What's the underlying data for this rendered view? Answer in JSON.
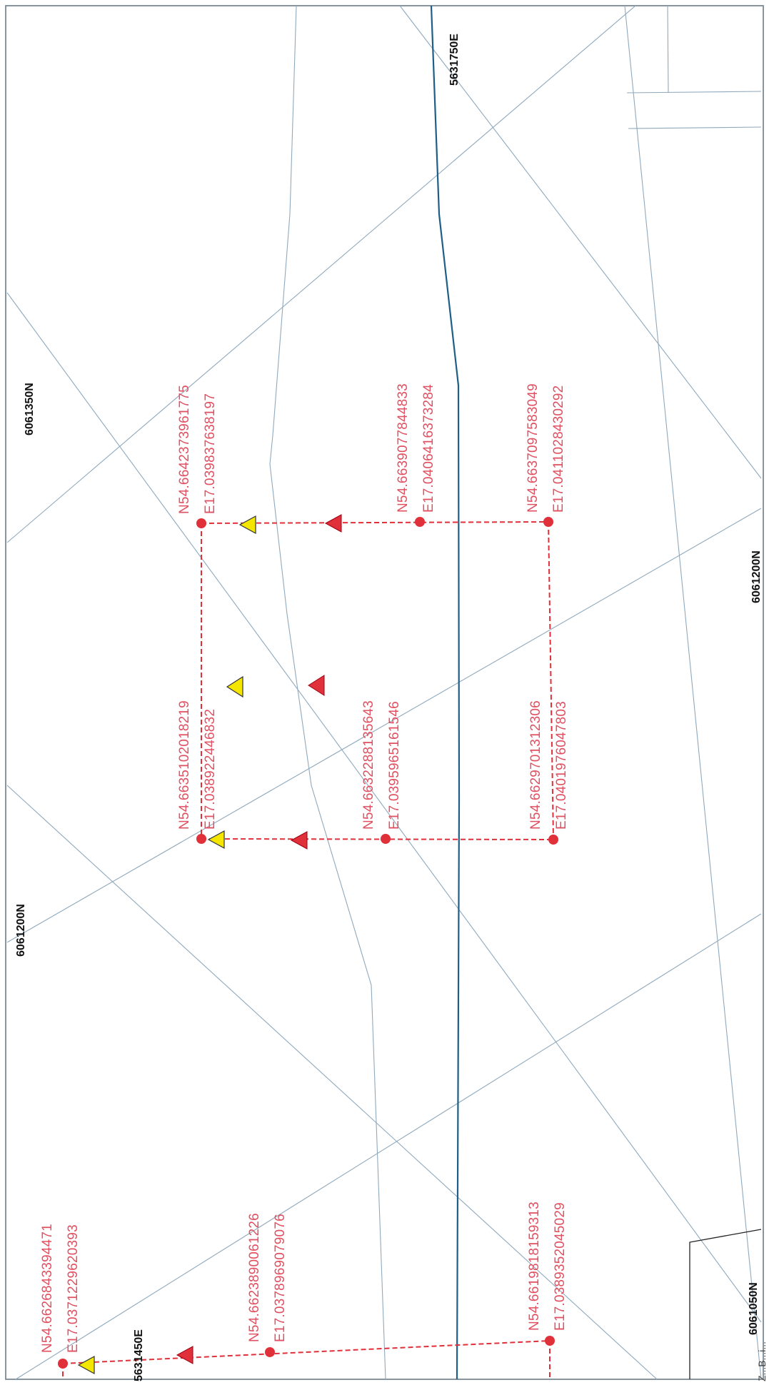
{
  "map": {
    "colors": {
      "background": "#ffffff",
      "frame": "#6a7a86",
      "thin_line": "#8fa9bd",
      "road_line": "#1d5f86",
      "route": "#e0303a",
      "label": "#e05060",
      "grid_label": "#111111",
      "marker_red": "#e0303a",
      "marker_yellow": "#f5e600"
    },
    "grid_labels": {
      "n_6061350": "6061350N",
      "e_5631750": "5631750E",
      "n_6061200_right": "6061200N",
      "n_6061200_left": "6061200N",
      "n_6061050": "6061050N",
      "e_5631450": "5631450E"
    },
    "points": {
      "p1": {
        "lat": "N54.6642373961775",
        "lon": "E17.039837638197"
      },
      "p2": {
        "lat": "N54.6639077844833",
        "lon": "E17.0406416373284"
      },
      "p3": {
        "lat": "N54.6637097583049",
        "lon": "E17.0411028430292"
      },
      "p4": {
        "lat": "N54.6635102018219",
        "lon": "E17.038922446832"
      },
      "p5": {
        "lat": "N54.6632288135643",
        "lon": "E17.0395965161546"
      },
      "p6": {
        "lat": "N54.6629701312306",
        "lon": "E17.0401976047803"
      },
      "p7": {
        "lat": "N54.6626843394471",
        "lon": "E17.0371229620393"
      },
      "p8": {
        "lat": "N54.6623890061226",
        "lon": "E17.0378969079076"
      },
      "p9": {
        "lat": "N54.6619818159313",
        "lon": "E17.0389352045029"
      }
    },
    "footer_text": "Z...B...i..."
  }
}
